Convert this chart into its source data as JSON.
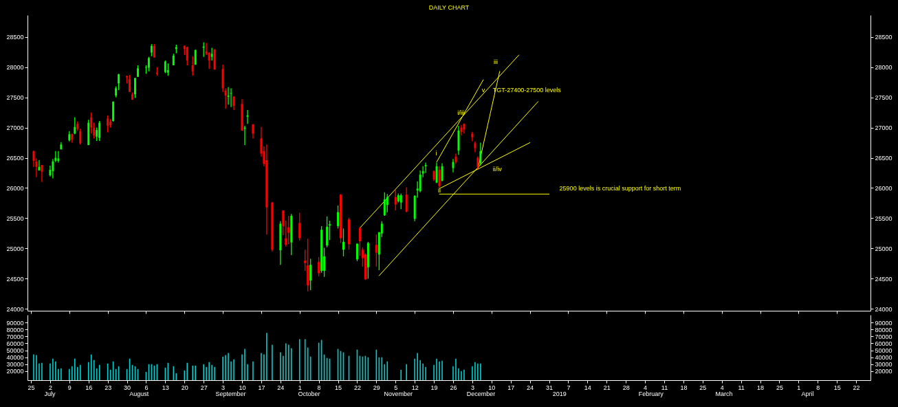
{
  "chart_data": [
    {
      "type": "candlestick",
      "title": "DAILY CHART",
      "x": [
        "2018-06-26",
        "2018-06-27",
        "2018-06-28",
        "2018-06-29",
        "2018-07-02",
        "2018-07-03",
        "2018-07-04",
        "2018-07-05",
        "2018-07-06",
        "2018-07-09",
        "2018-07-10",
        "2018-07-11",
        "2018-07-12",
        "2018-07-13",
        "2018-07-16",
        "2018-07-17",
        "2018-07-18",
        "2018-07-19",
        "2018-07-20",
        "2018-07-23",
        "2018-07-24",
        "2018-07-25",
        "2018-07-26",
        "2018-07-27",
        "2018-07-30",
        "2018-07-31",
        "2018-08-01",
        "2018-08-02",
        "2018-08-03",
        "2018-08-06",
        "2018-08-07",
        "2018-08-08",
        "2018-08-09",
        "2018-08-10",
        "2018-08-13",
        "2018-08-14",
        "2018-08-16",
        "2018-08-17",
        "2018-08-20",
        "2018-08-21",
        "2018-08-23",
        "2018-08-24",
        "2018-08-27",
        "2018-08-28",
        "2018-08-29",
        "2018-08-30",
        "2018-08-31",
        "2018-09-03",
        "2018-09-04",
        "2018-09-05",
        "2018-09-06",
        "2018-09-07",
        "2018-09-10",
        "2018-09-11",
        "2018-09-12",
        "2018-09-14",
        "2018-09-17",
        "2018-09-18",
        "2018-09-19",
        "2018-09-21",
        "2018-09-24",
        "2018-09-25",
        "2018-09-26",
        "2018-09-27",
        "2018-09-28",
        "2018-10-01",
        "2018-10-03",
        "2018-10-04",
        "2018-10-05",
        "2018-10-08",
        "2018-10-09",
        "2018-10-10",
        "2018-10-11",
        "2018-10-12",
        "2018-10-15",
        "2018-10-16",
        "2018-10-17",
        "2018-10-19",
        "2018-10-22",
        "2018-10-23",
        "2018-10-24",
        "2018-10-25",
        "2018-10-26",
        "2018-10-29",
        "2018-10-30",
        "2018-10-31",
        "2018-11-01",
        "2018-11-02",
        "2018-11-05",
        "2018-11-06",
        "2018-11-07",
        "2018-11-09",
        "2018-11-12",
        "2018-11-13",
        "2018-11-14",
        "2018-11-15",
        "2018-11-16",
        "2018-11-19",
        "2018-11-20",
        "2018-11-21",
        "2018-11-22",
        "2018-11-26",
        "2018-11-27",
        "2018-11-28",
        "2018-11-29",
        "2018-11-30",
        "2018-12-03",
        "2018-12-04",
        "2018-12-05",
        "2018-12-06"
      ],
      "ohlc": [
        [
          26610,
          26620,
          26350,
          26450
        ],
        [
          26440,
          26490,
          26180,
          26350
        ],
        [
          26290,
          26460,
          26290,
          26350
        ],
        [
          26380,
          26380,
          26100,
          26270
        ],
        [
          26210,
          26370,
          26190,
          26300
        ],
        [
          26280,
          26480,
          26160,
          26440
        ],
        [
          26450,
          26610,
          26430,
          26500
        ],
        [
          26450,
          26610,
          26420,
          26490
        ],
        [
          26640,
          26760,
          26640,
          26720
        ],
        [
          26790,
          26940,
          26770,
          26890
        ],
        [
          26890,
          26900,
          26750,
          26800
        ],
        [
          26900,
          27170,
          26890,
          27010
        ],
        [
          27060,
          27100,
          26950,
          26980
        ],
        [
          26940,
          26980,
          26720,
          26740
        ],
        [
          26710,
          27130,
          26710,
          27080
        ],
        [
          27170,
          27250,
          26900,
          27000
        ],
        [
          27000,
          27080,
          26820,
          26870
        ],
        [
          26850,
          27000,
          26780,
          26960
        ],
        [
          26830,
          27110,
          26780,
          27080
        ],
        [
          27150,
          27200,
          26920,
          27030
        ],
        [
          27100,
          27140,
          27000,
          27040
        ],
        [
          27110,
          27430,
          27100,
          27430
        ],
        [
          27530,
          27680,
          27500,
          27650
        ],
        [
          27730,
          27890,
          27620,
          27880
        ],
        [
          27850,
          27860,
          27730,
          27830
        ],
        [
          27800,
          27870,
          27590,
          27590
        ],
        [
          27550,
          27580,
          27460,
          27460
        ],
        [
          27550,
          27820,
          27490,
          27820
        ],
        [
          27840,
          28030,
          27840,
          27980
        ],
        [
          27990,
          28030,
          27890,
          28000
        ],
        [
          27990,
          28170,
          27930,
          28150
        ],
        [
          28240,
          28380,
          28180,
          28350
        ],
        [
          28350,
          28380,
          28160,
          28160
        ],
        [
          27910,
          28000,
          27860,
          27890
        ],
        [
          27920,
          28110,
          27900,
          28090
        ],
        [
          27910,
          28060,
          27860,
          27950
        ],
        [
          28030,
          28220,
          28030,
          28190
        ],
        [
          28300,
          28370,
          28230,
          28330
        ],
        [
          28350,
          28360,
          28200,
          28300
        ],
        [
          28330,
          28340,
          28030,
          28110
        ],
        [
          28030,
          28180,
          27860,
          27930
        ],
        [
          28040,
          28290,
          28040,
          28280
        ],
        [
          28320,
          28410,
          28170,
          28340
        ],
        [
          28260,
          28400,
          28200,
          28220
        ],
        [
          28240,
          28240,
          27970,
          28110
        ],
        [
          28170,
          28320,
          28110,
          28220
        ],
        [
          28290,
          28300,
          27960,
          27960
        ],
        [
          27970,
          28040,
          27590,
          27650
        ],
        [
          27610,
          27650,
          27310,
          27530
        ],
        [
          27510,
          27670,
          27380,
          27530
        ],
        [
          27560,
          27650,
          27340,
          27570
        ],
        [
          27510,
          27520,
          27290,
          27360
        ],
        [
          27390,
          27470,
          26950,
          26950
        ],
        [
          26980,
          27030,
          26710,
          27000
        ],
        [
          27180,
          27290,
          27060,
          27200
        ],
        [
          27050,
          27060,
          26820,
          26900
        ],
        [
          26820,
          27010,
          26520,
          26570
        ],
        [
          26610,
          26690,
          26360,
          26400
        ],
        [
          26460,
          26720,
          25230,
          25680
        ],
        [
          25760,
          25770,
          24950,
          24980
        ],
        [
          24970,
          25450,
          24730,
          25410
        ],
        [
          25630,
          25630,
          25220,
          25370
        ],
        [
          25170,
          25460,
          25030,
          25060
        ],
        [
          25350,
          25540,
          25070,
          25260
        ],
        [
          25100,
          25570,
          24890,
          25540
        ],
        [
          25420,
          25590,
          25130,
          25170
        ],
        [
          24800,
          24980,
          24630,
          24760
        ],
        [
          24720,
          25160,
          24290,
          24390
        ],
        [
          24470,
          24830,
          24310,
          24730
        ],
        [
          24780,
          24860,
          24540,
          24590
        ],
        [
          24630,
          25370,
          24600,
          25310
        ],
        [
          24630,
          25010,
          24530,
          24870
        ],
        [
          25050,
          25530,
          25020,
          25360
        ],
        [
          25380,
          25460,
          25140,
          25400
        ],
        [
          25370,
          25710,
          25330,
          25600
        ],
        [
          25890,
          25900,
          25090,
          25170
        ],
        [
          24980,
          25330,
          24870,
          25110
        ],
        [
          25480,
          25510,
          24980,
          25070
        ],
        [
          24820,
          25080,
          24790,
          25080
        ],
        [
          25340,
          25360,
          24880,
          25120
        ],
        [
          24980,
          25020,
          24700,
          24840
        ],
        [
          24900,
          24920,
          24480,
          24490
        ],
        [
          24690,
          25110,
          24500,
          25090
        ],
        [
          25060,
          25230,
          24700,
          24930
        ],
        [
          24900,
          25270,
          24640,
          25270
        ],
        [
          25250,
          25450,
          25190,
          25410
        ],
        [
          25550,
          25930,
          25540,
          25810
        ],
        [
          25720,
          25900,
          25600,
          25850
        ],
        [
          25850,
          25970,
          25630,
          25730
        ],
        [
          25780,
          25910,
          25760,
          25880
        ],
        [
          25760,
          25910,
          25650,
          25880
        ],
        [
          25890,
          26010,
          25600,
          25610
        ],
        [
          25490,
          25880,
          25450,
          25870
        ],
        [
          25960,
          26110,
          25840,
          25990
        ],
        [
          25950,
          26290,
          25930,
          26220
        ],
        [
          26240,
          26360,
          26180,
          26280
        ],
        [
          26360,
          26420,
          26250,
          26380
        ],
        [
          26280,
          26290,
          26120,
          26140
        ],
        [
          26090,
          26420,
          26080,
          26360
        ],
        [
          26300,
          26360,
          26010,
          26030
        ],
        [
          26120,
          26410,
          26110,
          26360
        ],
        [
          26330,
          26480,
          26260,
          26430
        ],
        [
          26520,
          26570,
          26400,
          26430
        ],
        [
          26620,
          27030,
          26550,
          26950
        ],
        [
          27000,
          27040,
          26870,
          26930
        ],
        [
          27060,
          27070,
          26900,
          26970
        ],
        [
          26900,
          26930,
          26770,
          26840
        ],
        [
          26740,
          26770,
          26590,
          26660
        ],
        [
          26500,
          26520,
          26310,
          26350
        ],
        [
          26410,
          26750,
          26370,
          26610
        ]
      ],
      "colors": [
        "#ff0000",
        "#ff0000",
        "#00ff00",
        "#ff0000",
        "#00ff00",
        "#00ff00",
        "#00ff00",
        "#00ff00",
        "#00ff00",
        "#00ff00",
        "#ff0000",
        "#00ff00",
        "#ff0000",
        "#ff0000",
        "#00ff00",
        "#ff0000",
        "#ff0000",
        "#00ff00",
        "#00ff00",
        "#ff0000",
        "#ff0000",
        "#00ff00",
        "#00ff00",
        "#00ff00",
        "#ff0000",
        "#ff0000",
        "#ff0000",
        "#00ff00",
        "#00ff00",
        "#00ff00",
        "#00ff00",
        "#00ff00",
        "#ff0000",
        "#ff0000",
        "#00ff00",
        "#00ff00",
        "#00ff00",
        "#00ff00",
        "#ff0000",
        "#ff0000",
        "#ff0000",
        "#00ff00",
        "#00ff00",
        "#ff0000",
        "#ff0000",
        "#00ff00",
        "#ff0000",
        "#ff0000",
        "#ff0000",
        "#00ff00",
        "#00ff00",
        "#ff0000",
        "#ff0000",
        "#00ff00",
        "#00ff00",
        "#ff0000",
        "#ff0000",
        "#ff0000",
        "#ff0000",
        "#ff0000",
        "#00ff00",
        "#ff0000",
        "#ff0000",
        "#ff0000",
        "#00ff00",
        "#ff0000",
        "#ff0000",
        "#ff0000",
        "#00ff00",
        "#ff0000",
        "#00ff00",
        "#00ff00",
        "#00ff00",
        "#00ff00",
        "#00ff00",
        "#ff0000",
        "#00ff00",
        "#ff0000",
        "#00ff00",
        "#ff0000",
        "#ff0000",
        "#ff0000",
        "#00ff00",
        "#ff0000",
        "#00ff00",
        "#00ff00",
        "#00ff00",
        "#00ff00",
        "#ff0000",
        "#00ff00",
        "#00ff00",
        "#ff0000",
        "#00ff00",
        "#00ff00",
        "#00ff00",
        "#00ff00",
        "#00ff00",
        "#ff0000",
        "#00ff00",
        "#ff0000",
        "#00ff00",
        "#00ff00",
        "#ff0000",
        "#00ff00",
        "#ff0000",
        "#ff0000",
        "#ff0000",
        "#ff0000",
        "#ff0000",
        "#00ff00"
      ],
      "series": [
        {
          "type": "line",
          "color": "#ffff00",
          "x": [
            "2018-10-23",
            "2018-12-20"
          ],
          "values": [
            25340,
            28200
          ]
        },
        {
          "type": "line",
          "color": "#ffff00",
          "x": [
            "2018-10-30",
            "2018-12-27"
          ],
          "values": [
            24550,
            27430
          ]
        },
        {
          "type": "line",
          "color": "#ffff00",
          "x": [
            "2018-11-20",
            "2018-12-07"
          ],
          "values": [
            26430,
            27790
          ]
        },
        {
          "type": "line",
          "color": "#ffff00",
          "x": [
            "2018-12-05",
            "2018-12-13"
          ],
          "values": [
            26310,
            27930
          ]
        },
        {
          "type": "line",
          "color": "#ffff00",
          "x": [
            "2018-11-21",
            "2018-12-24"
          ],
          "values": [
            25990,
            26750
          ]
        },
        {
          "type": "line",
          "color": "#ffff00",
          "x": [
            "2018-11-21",
            "2018-12-31"
          ],
          "values": [
            25900,
            25900
          ]
        }
      ],
      "annotations": [
        "i",
        {
          "text": "ii",
          "x": "2018-11-20",
          "y": 25960
        },
        "i/iii",
        "ii/iv",
        {
          "text": "v",
          "x": "2018-12-06",
          "y": 27620
        },
        "iii",
        {
          "text": "TGT-27400-27500 levels",
          "x": "2018-12-10",
          "y": 27620
        },
        "25900 levels is crucial support for short term"
      ],
      "xlim": [
        "2018-06-25",
        "2019-04-26"
      ],
      "xticks": [
        {
          "value": "2018-06-25",
          "label": null
        },
        {
          "value": "2018-07-02",
          "label": null
        },
        {
          "value": "2018-07-09",
          "label": null
        },
        {
          "value": "2018-07-16",
          "label": null
        },
        {
          "value": "2018-07-23",
          "label": null
        },
        {
          "value": "2018-07-30",
          "label": null
        },
        {
          "value": "2018-08-06",
          "label": null
        },
        {
          "value": "2018-08-13",
          "label": null
        },
        {
          "value": "2018-08-20",
          "label": null
        },
        {
          "value": "2018-08-27",
          "label": null
        },
        {
          "value": "2018-09-03",
          "label": null
        },
        {
          "value": "2018-09-10",
          "label": null
        },
        {
          "value": "2018-09-17",
          "label": null
        },
        {
          "value": "2018-09-24",
          "label": null
        },
        {
          "value": "2018-10-01",
          "label": null
        },
        {
          "value": "2018-10-08",
          "label": null
        },
        {
          "value": "2018-10-15",
          "label": null
        },
        {
          "value": "2018-10-22",
          "label": null
        },
        {
          "value": "2018-10-29",
          "label": null
        },
        {
          "value": "2018-11-05",
          "label": null
        },
        {
          "value": "2018-11-12",
          "label": null
        },
        {
          "value": "2018-11-19",
          "label": null
        },
        {
          "value": "2018-11-26",
          "label": null
        },
        {
          "value": "2018-12-03",
          "label": null
        },
        {
          "value": "2018-12-10",
          "label": null
        },
        {
          "value": "2018-12-17",
          "label": null
        },
        {
          "value": "2018-12-24",
          "label": null
        },
        {
          "value": "2018-12-31",
          "label": null
        },
        {
          "value": "2019-01-07",
          "label": null
        },
        {
          "value": "2019-01-14",
          "label": null
        },
        {
          "value": "2019-01-21",
          "label": null
        },
        {
          "value": "2019-01-28",
          "label": null
        },
        {
          "value": "2019-02-04",
          "label": null
        },
        {
          "value": "2019-02-11",
          "label": null
        },
        {
          "value": "2019-02-18",
          "label": null
        },
        {
          "value": "2019-02-25",
          "label": null
        },
        {
          "value": "2019-03-04",
          "label": null
        },
        {
          "value": "2019-03-11",
          "label": null
        },
        {
          "value": "2019-03-18",
          "label": null
        },
        {
          "value": "2019-03-25",
          "label": null
        },
        {
          "value": "2019-04-01",
          "label": null
        },
        {
          "value": "2019-04-08",
          "label": null
        },
        {
          "value": "2019-04-15",
          "label": null
        },
        {
          "value": "2019-04-22",
          "label": null
        }
      ],
      "ylim": [
        23970,
        28860
      ],
      "yticks": [
        24000,
        24500,
        25000,
        25500,
        26000,
        26500,
        27000,
        27500,
        28000,
        28500
      ],
      "y2lim": [
        23970,
        28860
      ],
      "y2ticks": [
        24000,
        24500,
        25000,
        25500,
        26000,
        26500,
        27000,
        27500,
        28000,
        28500
      ],
      "tick_labels": "y"
    },
    {
      "type": "bar",
      "color": "#00d0d0",
      "x": [
        "2018-06-26",
        "2018-06-27",
        "2018-06-28",
        "2018-06-29",
        "2018-07-02",
        "2018-07-03",
        "2018-07-04",
        "2018-07-05",
        "2018-07-06",
        "2018-07-09",
        "2018-07-10",
        "2018-07-11",
        "2018-07-12",
        "2018-07-13",
        "2018-07-16",
        "2018-07-17",
        "2018-07-18",
        "2018-07-19",
        "2018-07-20",
        "2018-07-23",
        "2018-07-24",
        "2018-07-25",
        "2018-07-26",
        "2018-07-27",
        "2018-07-30",
        "2018-07-31",
        "2018-08-01",
        "2018-08-02",
        "2018-08-03",
        "2018-08-06",
        "2018-08-07",
        "2018-08-08",
        "2018-08-09",
        "2018-08-10",
        "2018-08-13",
        "2018-08-14",
        "2018-08-16",
        "2018-08-17",
        "2018-08-20",
        "2018-08-21",
        "2018-08-23",
        "2018-08-24",
        "2018-08-27",
        "2018-08-28",
        "2018-08-29",
        "2018-08-30",
        "2018-08-31",
        "2018-09-03",
        "2018-09-04",
        "2018-09-05",
        "2018-09-06",
        "2018-09-07",
        "2018-09-10",
        "2018-09-11",
        "2018-09-12",
        "2018-09-14",
        "2018-09-17",
        "2018-09-18",
        "2018-09-19",
        "2018-09-21",
        "2018-09-24",
        "2018-09-25",
        "2018-09-26",
        "2018-09-27",
        "2018-09-28",
        "2018-10-01",
        "2018-10-03",
        "2018-10-04",
        "2018-10-05",
        "2018-10-08",
        "2018-10-09",
        "2018-10-10",
        "2018-10-11",
        "2018-10-12",
        "2018-10-15",
        "2018-10-16",
        "2018-10-17",
        "2018-10-19",
        "2018-10-22",
        "2018-10-23",
        "2018-10-24",
        "2018-10-25",
        "2018-10-26",
        "2018-10-29",
        "2018-10-30",
        "2018-10-31",
        "2018-11-01",
        "2018-11-02",
        "2018-11-05",
        "2018-11-06",
        "2018-11-07",
        "2018-11-09",
        "2018-11-12",
        "2018-11-13",
        "2018-11-14",
        "2018-11-15",
        "2018-11-16",
        "2018-11-19",
        "2018-11-20",
        "2018-11-21",
        "2018-11-22",
        "2018-11-26",
        "2018-11-27",
        "2018-11-28",
        "2018-11-29",
        "2018-11-30",
        "2018-12-03",
        "2018-12-04",
        "2018-12-05",
        "2018-12-06"
      ],
      "values": [
        44000,
        43000,
        31000,
        32000,
        31000,
        38000,
        34000,
        23000,
        24000,
        23000,
        27000,
        38000,
        26000,
        29000,
        33000,
        44000,
        36000,
        24000,
        29000,
        31000,
        22000,
        34000,
        23000,
        27000,
        23000,
        38000,
        29000,
        27000,
        23000,
        19000,
        30000,
        30000,
        28000,
        30000,
        25000,
        32000,
        27000,
        17000,
        21000,
        32000,
        28000,
        28000,
        30000,
        26000,
        33000,
        29000,
        26000,
        41000,
        43000,
        46000,
        34000,
        37000,
        44000,
        52000,
        30000,
        34000,
        46000,
        44000,
        75000,
        58000,
        47000,
        42000,
        60000,
        58000,
        53000,
        66000,
        66000,
        54000,
        41000,
        61000,
        65000,
        44000,
        39000,
        38000,
        52000,
        49000,
        47000,
        42000,
        51000,
        42000,
        41000,
        42000,
        40000,
        51000,
        40000,
        40000,
        30000,
        34000,
        null,
        null,
        22000,
        30000,
        38000,
        46000,
        36000,
        31000,
        26000,
        29000,
        38000,
        34000,
        35000,
        27000,
        38000,
        24000,
        20000,
        22000,
        27000,
        33000,
        31000,
        31000
      ],
      "annotations": [
        "July",
        "August",
        "September",
        "October",
        "November",
        "December",
        "2019",
        "February",
        "March",
        "April"
      ],
      "xlim": [
        "2018-06-25",
        "2019-04-26"
      ],
      "xticks": [
        {
          "value": "2018-06-25",
          "label": "25"
        },
        {
          "value": "2018-07-02",
          "label": "2"
        },
        {
          "value": "2018-07-09",
          "label": "9"
        },
        {
          "value": "2018-07-16",
          "label": "16"
        },
        {
          "value": "2018-07-23",
          "label": "23"
        },
        {
          "value": "2018-07-30",
          "label": "30"
        },
        {
          "value": "2018-08-06",
          "label": "6"
        },
        {
          "value": "2018-08-13",
          "label": "13"
        },
        {
          "value": "2018-08-20",
          "label": "20"
        },
        {
          "value": "2018-08-27",
          "label": "27"
        },
        {
          "value": "2018-09-03",
          "label": "3"
        },
        {
          "value": "2018-09-10",
          "label": "10"
        },
        {
          "value": "2018-09-17",
          "label": "17"
        },
        {
          "value": "2018-09-24",
          "label": "24"
        },
        {
          "value": "2018-10-01",
          "label": "1"
        },
        {
          "value": "2018-10-08",
          "label": "8"
        },
        {
          "value": "2018-10-15",
          "label": "15"
        },
        {
          "value": "2018-10-22",
          "label": "22"
        },
        {
          "value": "2018-10-29",
          "label": "29"
        },
        {
          "value": "2018-11-05",
          "label": "5"
        },
        {
          "value": "2018-11-12",
          "label": "12"
        },
        {
          "value": "2018-11-19",
          "label": "19"
        },
        {
          "value": "2018-11-26",
          "label": "26"
        },
        {
          "value": "2018-12-03",
          "label": "3"
        },
        {
          "value": "2018-12-10",
          "label": "10"
        },
        {
          "value": "2018-12-17",
          "label": "17"
        },
        {
          "value": "2018-12-24",
          "label": "24"
        },
        {
          "value": "2018-12-31",
          "label": "31"
        },
        {
          "value": "2019-01-07",
          "label": "7"
        },
        {
          "value": "2019-01-14",
          "label": "14"
        },
        {
          "value": "2019-01-21",
          "label": "21"
        },
        {
          "value": "2019-01-28",
          "label": "28"
        },
        {
          "value": "2019-02-04",
          "label": "4"
        },
        {
          "value": "2019-02-11",
          "label": "11"
        },
        {
          "value": "2019-02-18",
          "label": "18"
        },
        {
          "value": "2019-02-25",
          "label": "25"
        },
        {
          "value": "2019-03-04",
          "label": "4"
        },
        {
          "value": "2019-03-11",
          "label": "11"
        },
        {
          "value": "2019-03-18",
          "label": "18"
        },
        {
          "value": "2019-03-25",
          "label": "25"
        },
        {
          "value": "2019-04-01",
          "label": "1"
        },
        {
          "value": "2019-04-08",
          "label": "8"
        },
        {
          "value": "2019-04-15",
          "label": "15"
        },
        {
          "value": "2019-04-22",
          "label": "22"
        }
      ],
      "ylim": [
        7000,
        101000
      ],
      "yticks": [
        20000,
        30000,
        40000,
        50000,
        60000,
        70000,
        80000,
        90000
      ],
      "y2lim": [
        7000,
        101000
      ],
      "y2ticks": [
        20000,
        30000,
        40000,
        50000,
        60000,
        70000,
        80000,
        90000
      ]
    }
  ]
}
